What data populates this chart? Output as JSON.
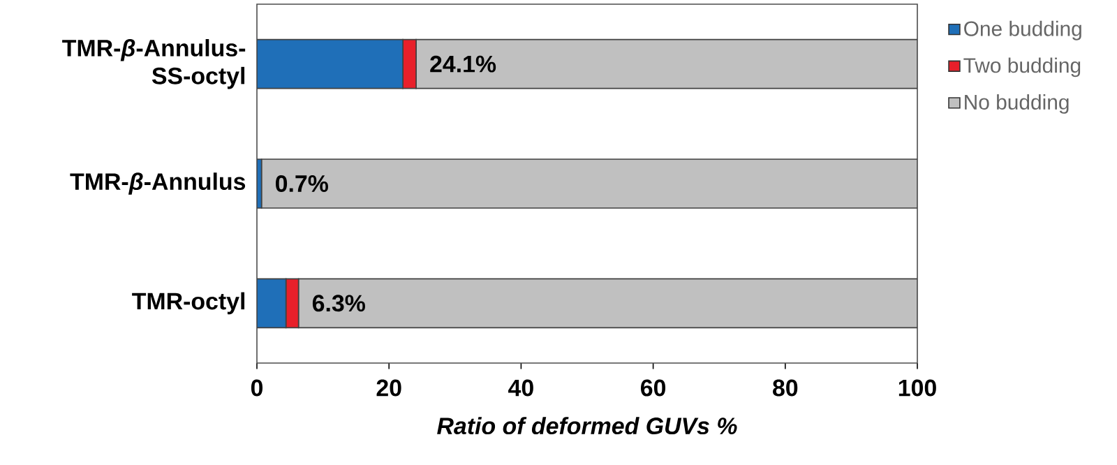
{
  "chart_data": {
    "type": "bar",
    "orientation": "horizontal",
    "stacked": true,
    "xlabel": "Ratio of deformed GUVs %",
    "categories": [
      "TMR-*β*-Annulus-SS-octyl",
      "TMR-*β*-Annulus",
      "TMR-octyl"
    ],
    "series": [
      {
        "name": "One budding",
        "color": "#1f6fb8",
        "values": [
          22.1,
          0.7,
          4.4
        ]
      },
      {
        "name": "Two budding",
        "color": "#e8202a",
        "values": [
          2.0,
          0,
          1.9
        ]
      },
      {
        "name": "No budding",
        "color": "#c0c0c0",
        "values": [
          75.9,
          99.3,
          93.7
        ]
      }
    ],
    "xlim": [
      0,
      100
    ],
    "xticks": [
      0,
      20,
      40,
      60,
      80,
      100
    ],
    "legend": "right",
    "annotations": [
      {
        "text": "24.1%",
        "x": 24.1,
        "y": "TMR-*β*-Annulus-SS-octyl"
      },
      {
        "text": "0.7%",
        "x": 0.7,
        "y": "TMR-*β*-Annulus"
      },
      {
        "text": "6.3%",
        "x": 6.3,
        "y": "TMR-octyl"
      }
    ]
  }
}
